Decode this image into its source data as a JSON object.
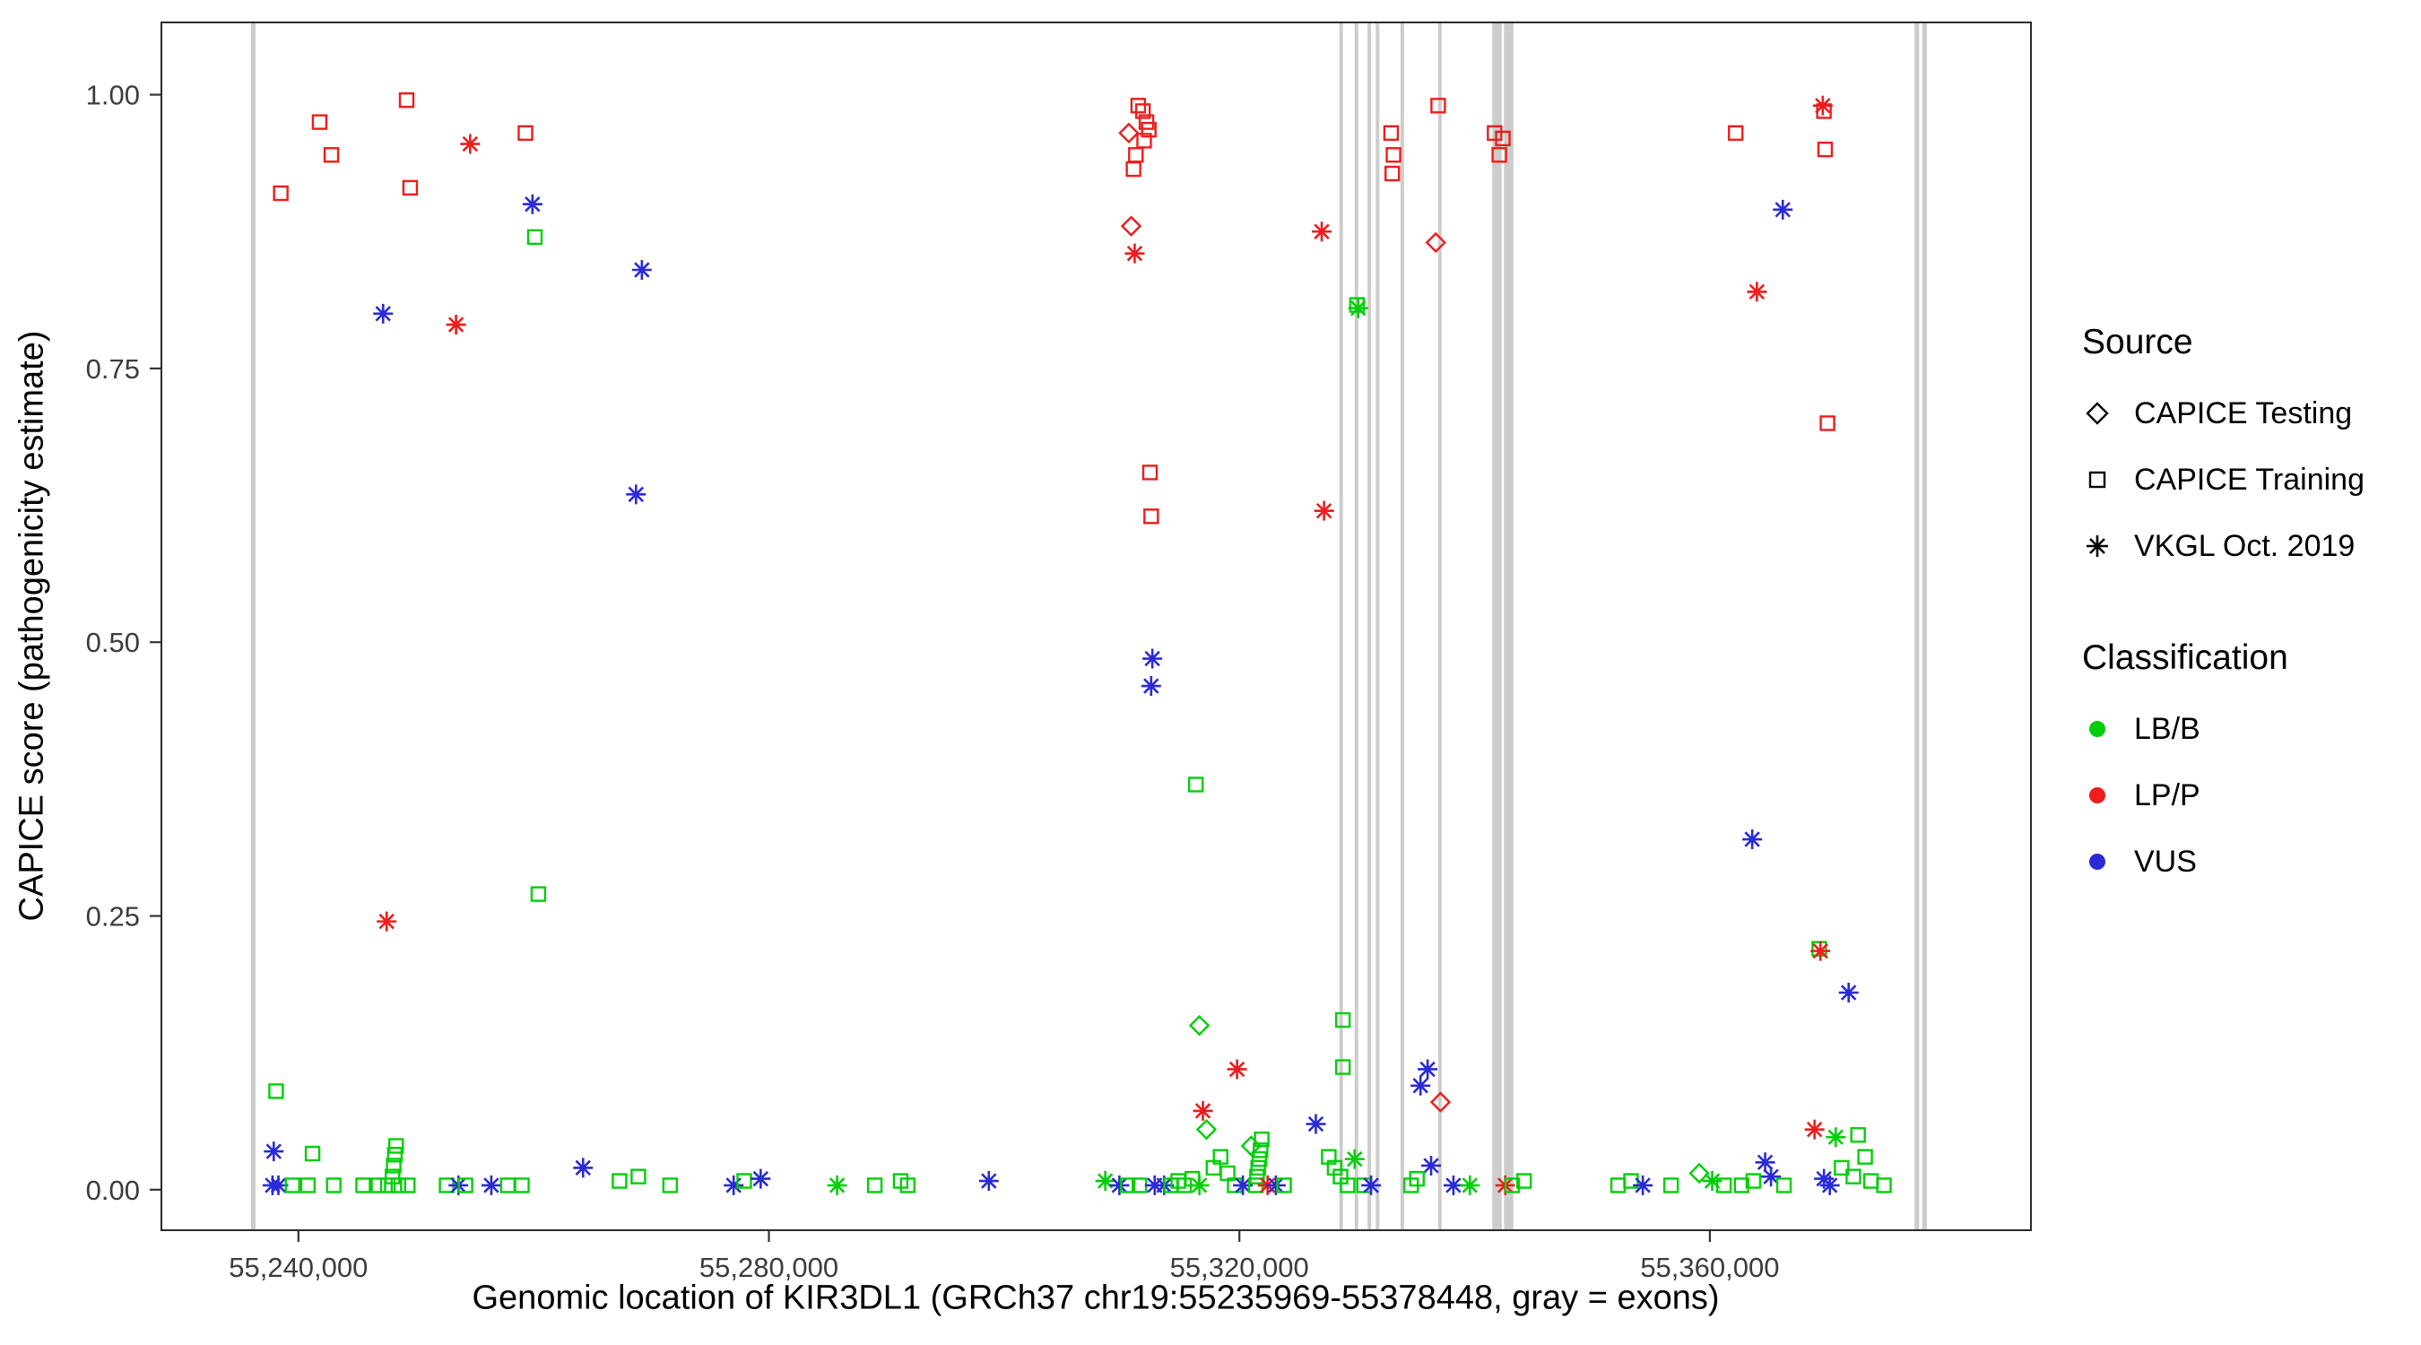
{
  "chart_data": {
    "type": "scatter",
    "title": "",
    "xlabel": "Genomic location of KIR3DL1 (GRCh37 chr19:55235969-55378448, gray = exons)",
    "ylabel": "CAPICE score (pathogenicity estimate)",
    "xlim": [
      55228350,
      55387300
    ],
    "ylim": [
      -0.037,
      1.066
    ],
    "grid": "off",
    "legend_position": "right",
    "xticks": [
      {
        "value": 55240000,
        "label": "55,240,000"
      },
      {
        "value": 55280000,
        "label": "55,280,000"
      },
      {
        "value": 55320000,
        "label": "55,320,000"
      },
      {
        "value": 55360000,
        "label": "55,360,000"
      }
    ],
    "yticks": [
      {
        "value": 0.0,
        "label": "0.00"
      },
      {
        "value": 0.25,
        "label": "0.25"
      },
      {
        "value": 0.5,
        "label": "0.50"
      },
      {
        "value": 0.75,
        "label": "0.75"
      },
      {
        "value": 1.0,
        "label": "1.00"
      }
    ],
    "exon_color": "#c6c6c6",
    "exons": [
      [
        55235969,
        55236350
      ],
      [
        55328500,
        55328800
      ],
      [
        55329800,
        55330100
      ],
      [
        55330900,
        55331200
      ],
      [
        55331600,
        55331900
      ],
      [
        55333700,
        55334000
      ],
      [
        55336900,
        55337200
      ],
      [
        55341500,
        55342300
      ],
      [
        55342500,
        55343300
      ],
      [
        55377400,
        55377800
      ],
      [
        55378050,
        55378448
      ]
    ],
    "shape_key": {
      "di": "CAPICE Testing",
      "sq": "CAPICE Training",
      "as": "VKGL Oct. 2019"
    },
    "class_colors": {
      "LB/B": "#00cf08",
      "LP/P": "#ee1c1c",
      "VUS": "#2a2ad6"
    },
    "points": [
      [
        55238500,
        0.91,
        "sq",
        "LP/P"
      ],
      [
        55241800,
        0.975,
        "sq",
        "LP/P"
      ],
      [
        55242800,
        0.945,
        "sq",
        "LP/P"
      ],
      [
        55249200,
        0.995,
        "sq",
        "LP/P"
      ],
      [
        55249500,
        0.915,
        "sq",
        "LP/P"
      ],
      [
        55247200,
        0.8,
        "as",
        "VUS"
      ],
      [
        55247500,
        0.245,
        "as",
        "LP/P"
      ],
      [
        55253400,
        0.79,
        "as",
        "LP/P"
      ],
      [
        55254600,
        0.955,
        "as",
        "LP/P"
      ],
      [
        55259300,
        0.965,
        "sq",
        "LP/P"
      ],
      [
        55259900,
        0.9,
        "as",
        "VUS"
      ],
      [
        55260100,
        0.87,
        "sq",
        "LB/B"
      ],
      [
        55260400,
        0.27,
        "sq",
        "LB/B"
      ],
      [
        55269200,
        0.84,
        "as",
        "VUS"
      ],
      [
        55268700,
        0.635,
        "as",
        "VUS"
      ],
      [
        55310600,
        0.965,
        "di",
        "LP/P"
      ],
      [
        55311400,
        0.99,
        "sq",
        "LP/P"
      ],
      [
        55311800,
        0.985,
        "sq",
        "LP/P"
      ],
      [
        55312100,
        0.975,
        "sq",
        "LP/P"
      ],
      [
        55312300,
        0.968,
        "sq",
        "LP/P"
      ],
      [
        55311900,
        0.958,
        "sq",
        "LP/P"
      ],
      [
        55311200,
        0.945,
        "sq",
        "LP/P"
      ],
      [
        55311000,
        0.932,
        "sq",
        "LP/P"
      ],
      [
        55310800,
        0.88,
        "di",
        "LP/P"
      ],
      [
        55311100,
        0.855,
        "as",
        "LP/P"
      ],
      [
        55312400,
        0.655,
        "sq",
        "LP/P"
      ],
      [
        55312500,
        0.615,
        "sq",
        "LP/P"
      ],
      [
        55312600,
        0.485,
        "as",
        "VUS"
      ],
      [
        55312500,
        0.46,
        "as",
        "VUS"
      ],
      [
        55316300,
        0.37,
        "sq",
        "LB/B"
      ],
      [
        55316600,
        0.15,
        "di",
        "LB/B"
      ],
      [
        55319800,
        0.11,
        "as",
        "LP/P"
      ],
      [
        55316900,
        0.072,
        "as",
        "LP/P"
      ],
      [
        55327000,
        0.875,
        "as",
        "LP/P"
      ],
      [
        55327200,
        0.62,
        "as",
        "LP/P"
      ],
      [
        55326500,
        0.06,
        "as",
        "VUS"
      ],
      [
        55330000,
        0.808,
        "sq",
        "LB/B"
      ],
      [
        55330100,
        0.805,
        "as",
        "LB/B"
      ],
      [
        55328800,
        0.155,
        "sq",
        "LB/B"
      ],
      [
        55328800,
        0.112,
        "sq",
        "LB/B"
      ],
      [
        55332900,
        0.965,
        "sq",
        "LP/P"
      ],
      [
        55333100,
        0.945,
        "sq",
        "LP/P"
      ],
      [
        55333000,
        0.928,
        "sq",
        "LP/P"
      ],
      [
        55336900,
        0.99,
        "sq",
        "LP/P"
      ],
      [
        55336700,
        0.865,
        "di",
        "LP/P"
      ],
      [
        55336000,
        0.11,
        "as",
        "VUS"
      ],
      [
        55335400,
        0.095,
        "as",
        "VUS"
      ],
      [
        55337100,
        0.08,
        "di",
        "LP/P"
      ],
      [
        55336300,
        0.022,
        "as",
        "VUS"
      ],
      [
        55341700,
        0.965,
        "sq",
        "LP/P"
      ],
      [
        55342400,
        0.96,
        "sq",
        "LP/P"
      ],
      [
        55342100,
        0.945,
        "sq",
        "LP/P"
      ],
      [
        55362200,
        0.965,
        "sq",
        "LP/P"
      ],
      [
        55364000,
        0.82,
        "as",
        "LP/P"
      ],
      [
        55366200,
        0.895,
        "as",
        "VUS"
      ],
      [
        55369600,
        0.99,
        "as",
        "LP/P"
      ],
      [
        55369700,
        0.985,
        "sq",
        "LP/P"
      ],
      [
        55369800,
        0.95,
        "sq",
        "LP/P"
      ],
      [
        55370000,
        0.7,
        "sq",
        "LP/P"
      ],
      [
        55363600,
        0.32,
        "as",
        "VUS"
      ],
      [
        55369300,
        0.22,
        "sq",
        "LB/B"
      ],
      [
        55369400,
        0.218,
        "as",
        "LP/P"
      ],
      [
        55371800,
        0.18,
        "as",
        "VUS"
      ],
      [
        55368900,
        0.055,
        "as",
        "LP/P"
      ],
      [
        55370700,
        0.048,
        "as",
        "LB/B"
      ],
      [
        55372600,
        0.05,
        "sq",
        "LB/B"
      ],
      [
        55237900,
        0.035,
        "as",
        "VUS"
      ],
      [
        55238100,
        0.09,
        "sq",
        "LB/B"
      ],
      [
        55241200,
        0.033,
        "sq",
        "LB/B"
      ],
      [
        55237800,
        0.004,
        "as",
        "VUS"
      ],
      [
        55238300,
        0.004,
        "as",
        "VUS"
      ],
      [
        55239500,
        0.004,
        "sq",
        "LB/B"
      ],
      [
        55240800,
        0.004,
        "sq",
        "LB/B"
      ],
      [
        55243000,
        0.004,
        "sq",
        "LB/B"
      ],
      [
        55245500,
        0.004,
        "sq",
        "LB/B"
      ],
      [
        55246800,
        0.004,
        "sq",
        "LB/B"
      ],
      [
        55247600,
        0.004,
        "sq",
        "LB/B"
      ],
      [
        55248000,
        0.012,
        "sq",
        "LB/B"
      ],
      [
        55248100,
        0.022,
        "sq",
        "LB/B"
      ],
      [
        55248200,
        0.032,
        "sq",
        "LB/B"
      ],
      [
        55248300,
        0.04,
        "sq",
        "LB/B"
      ],
      [
        55248500,
        0.004,
        "sq",
        "LB/B"
      ],
      [
        55249300,
        0.004,
        "sq",
        "LB/B"
      ],
      [
        55252600,
        0.004,
        "sq",
        "LB/B"
      ],
      [
        55253600,
        0.004,
        "as",
        "VUS"
      ],
      [
        55254200,
        0.004,
        "sq",
        "LB/B"
      ],
      [
        55256400,
        0.004,
        "as",
        "VUS"
      ],
      [
        55257800,
        0.004,
        "sq",
        "LB/B"
      ],
      [
        55259000,
        0.004,
        "sq",
        "LB/B"
      ],
      [
        55264200,
        0.02,
        "as",
        "VUS"
      ],
      [
        55267300,
        0.008,
        "sq",
        "LB/B"
      ],
      [
        55268900,
        0.012,
        "sq",
        "LB/B"
      ],
      [
        55271600,
        0.004,
        "sq",
        "LB/B"
      ],
      [
        55277000,
        0.004,
        "as",
        "VUS"
      ],
      [
        55277900,
        0.008,
        "sq",
        "LB/B"
      ],
      [
        55279300,
        0.01,
        "as",
        "VUS"
      ],
      [
        55285800,
        0.004,
        "as",
        "LB/B"
      ],
      [
        55289000,
        0.004,
        "sq",
        "LB/B"
      ],
      [
        55291200,
        0.008,
        "sq",
        "LB/B"
      ],
      [
        55291800,
        0.004,
        "sq",
        "LB/B"
      ],
      [
        55298700,
        0.008,
        "as",
        "VUS"
      ],
      [
        55308600,
        0.008,
        "as",
        "LB/B"
      ],
      [
        55309800,
        0.004,
        "as",
        "VUS"
      ],
      [
        55310500,
        0.004,
        "sq",
        "LB/B"
      ],
      [
        55311500,
        0.004,
        "sq",
        "LB/B"
      ],
      [
        55312800,
        0.004,
        "as",
        "VUS"
      ],
      [
        55313600,
        0.004,
        "as",
        "VUS"
      ],
      [
        55314200,
        0.004,
        "sq",
        "LB/B"
      ],
      [
        55314800,
        0.008,
        "sq",
        "LB/B"
      ],
      [
        55315300,
        0.004,
        "sq",
        "LB/B"
      ],
      [
        55316000,
        0.01,
        "sq",
        "LB/B"
      ],
      [
        55316600,
        0.004,
        "as",
        "LB/B"
      ],
      [
        55317200,
        0.055,
        "di",
        "LB/B"
      ],
      [
        55317800,
        0.02,
        "sq",
        "LB/B"
      ],
      [
        55318400,
        0.03,
        "sq",
        "LB/B"
      ],
      [
        55319000,
        0.015,
        "sq",
        "LB/B"
      ],
      [
        55319600,
        0.004,
        "sq",
        "LB/B"
      ],
      [
        55320300,
        0.004,
        "as",
        "VUS"
      ],
      [
        55321000,
        0.04,
        "di",
        "LB/B"
      ],
      [
        55321400,
        0.004,
        "sq",
        "LB/B"
      ],
      [
        55321500,
        0.012,
        "sq",
        "LB/B"
      ],
      [
        55321600,
        0.02,
        "sq",
        "LB/B"
      ],
      [
        55321700,
        0.028,
        "sq",
        "LB/B"
      ],
      [
        55321800,
        0.036,
        "sq",
        "LB/B"
      ],
      [
        55321900,
        0.046,
        "sq",
        "LB/B"
      ],
      [
        55322400,
        0.004,
        "as",
        "LP/P"
      ],
      [
        55323100,
        0.004,
        "as",
        "VUS"
      ],
      [
        55323800,
        0.004,
        "sq",
        "LB/B"
      ],
      [
        55327600,
        0.03,
        "sq",
        "LB/B"
      ],
      [
        55328100,
        0.02,
        "sq",
        "LB/B"
      ],
      [
        55328600,
        0.012,
        "sq",
        "LB/B"
      ],
      [
        55329200,
        0.004,
        "sq",
        "LB/B"
      ],
      [
        55329800,
        0.028,
        "as",
        "LB/B"
      ],
      [
        55330600,
        0.004,
        "sq",
        "LB/B"
      ],
      [
        55331200,
        0.004,
        "as",
        "VUS"
      ],
      [
        55334600,
        0.004,
        "sq",
        "LB/B"
      ],
      [
        55335100,
        0.01,
        "sq",
        "LB/B"
      ],
      [
        55338200,
        0.004,
        "as",
        "VUS"
      ],
      [
        55339600,
        0.004,
        "as",
        "LB/B"
      ],
      [
        55342600,
        0.004,
        "as",
        "LP/P"
      ],
      [
        55343200,
        0.004,
        "sq",
        "LB/B"
      ],
      [
        55344200,
        0.008,
        "sq",
        "LB/B"
      ],
      [
        55352200,
        0.004,
        "sq",
        "LB/B"
      ],
      [
        55353300,
        0.008,
        "sq",
        "LB/B"
      ],
      [
        55354300,
        0.004,
        "as",
        "VUS"
      ],
      [
        55356700,
        0.004,
        "sq",
        "LB/B"
      ],
      [
        55359100,
        0.015,
        "di",
        "LB/B"
      ],
      [
        55360200,
        0.008,
        "as",
        "LB/B"
      ],
      [
        55361200,
        0.004,
        "sq",
        "LB/B"
      ],
      [
        55362700,
        0.004,
        "sq",
        "LB/B"
      ],
      [
        55363700,
        0.008,
        "sq",
        "LB/B"
      ],
      [
        55364700,
        0.025,
        "as",
        "VUS"
      ],
      [
        55365200,
        0.012,
        "as",
        "VUS"
      ],
      [
        55366300,
        0.004,
        "sq",
        "LB/B"
      ],
      [
        55369700,
        0.01,
        "as",
        "VUS"
      ],
      [
        55370200,
        0.004,
        "as",
        "VUS"
      ],
      [
        55371200,
        0.02,
        "sq",
        "LB/B"
      ],
      [
        55372200,
        0.012,
        "sq",
        "LB/B"
      ],
      [
        55373200,
        0.03,
        "sq",
        "LB/B"
      ],
      [
        55373700,
        0.008,
        "sq",
        "LB/B"
      ],
      [
        55374800,
        0.004,
        "sq",
        "LB/B"
      ]
    ]
  },
  "legend": {
    "source": {
      "title": "Source",
      "items": [
        {
          "shape": "diamond",
          "label": "CAPICE Testing"
        },
        {
          "shape": "square",
          "label": "CAPICE Training"
        },
        {
          "shape": "asterisk",
          "label": "VKGL Oct. 2019"
        }
      ]
    },
    "classification": {
      "title": "Classification",
      "items": [
        {
          "label": "LB/B",
          "color": "#00cf08"
        },
        {
          "label": "LP/P",
          "color": "#ee1c1c"
        },
        {
          "label": "VUS",
          "color": "#2a2ad6"
        }
      ]
    }
  }
}
